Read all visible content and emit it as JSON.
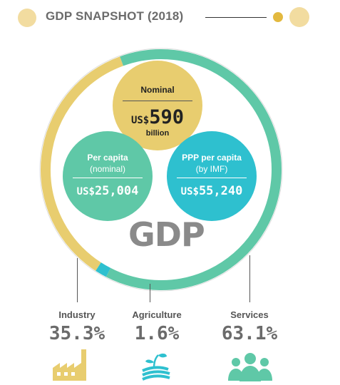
{
  "header": {
    "title": "GDP SNAPSHOT (2018)"
  },
  "colors": {
    "industry": "#e8cd6f",
    "agriculture": "#2ec0cf",
    "services": "#5fc8a7",
    "text_gray": "#6b6b6b"
  },
  "center_label": "GDP",
  "nominal": {
    "label": "Nominal",
    "currency": "US$",
    "value": "590",
    "unit": "billion"
  },
  "per_capita": {
    "label": "Per capita",
    "sublabel": "(nominal)",
    "currency": "US$",
    "value": "25,004"
  },
  "ppp": {
    "label": "PPP per capita",
    "sublabel": "(by IMF)",
    "currency": "US$",
    "value": "55,240"
  },
  "sectors": [
    {
      "label": "Industry",
      "display": "35.3%",
      "share": 35.3,
      "icon": "factory-icon"
    },
    {
      "label": "Agriculture",
      "display": "1.6%",
      "share": 1.6,
      "icon": "plant-icon"
    },
    {
      "label": "Services",
      "display": "63.1%",
      "share": 63.1,
      "icon": "people-icon"
    }
  ]
}
